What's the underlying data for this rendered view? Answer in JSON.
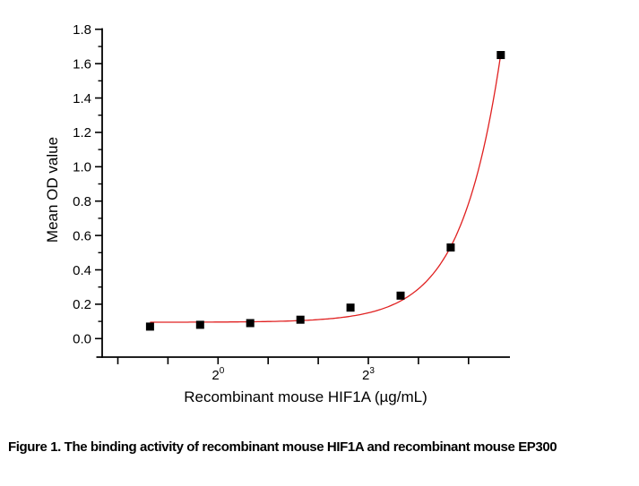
{
  "figure": {
    "caption": "Figure 1. The binding activity of recombinant mouse HIF1A and recombinant mouse EP300"
  },
  "chart_data": {
    "type": "scatter",
    "title": "",
    "xlabel": "Recombinant mouse HIF1A (µg/mL)",
    "ylabel": "Mean OD value",
    "x_scale": "log2",
    "x": [
      0.39,
      0.78,
      1.56,
      3.125,
      6.25,
      12.5,
      25,
      50
    ],
    "y": [
      0.07,
      0.08,
      0.09,
      0.11,
      0.18,
      0.25,
      0.53,
      1.65
    ],
    "series": [
      {
        "name": "Mean OD value",
        "marker": "filled-square",
        "marker_color": "#000000",
        "marker_size": 9
      }
    ],
    "fit_line": {
      "style": "4PL-exponential-fit",
      "color": "#e02020",
      "width": 1.3,
      "baseline_od": 0.095,
      "amplitude": 0.44,
      "fold_per_octave": 3.55,
      "ref_log2": 4.644
    },
    "x_axis": {
      "tick_log2_positions": [
        -2,
        -1,
        0,
        1,
        2,
        3,
        4,
        5
      ],
      "labeled_ticks": [
        {
          "base": "2",
          "exp": "0",
          "log2": 0
        },
        {
          "base": "2",
          "exp": "3",
          "log2": 3
        }
      ]
    },
    "y_axis": {
      "min": 0.0,
      "max": 1.8,
      "major_step": 0.2,
      "minor_step": 0.1,
      "tick_labels": [
        "0.0",
        "0.2",
        "0.4",
        "0.6",
        "0.8",
        "1.0",
        "1.2",
        "1.4",
        "1.6",
        "1.8"
      ]
    },
    "ylim": [
      0,
      1.8
    ],
    "grid": false,
    "legend": "none",
    "axis_color": "#000000",
    "background": "#ffffff"
  }
}
